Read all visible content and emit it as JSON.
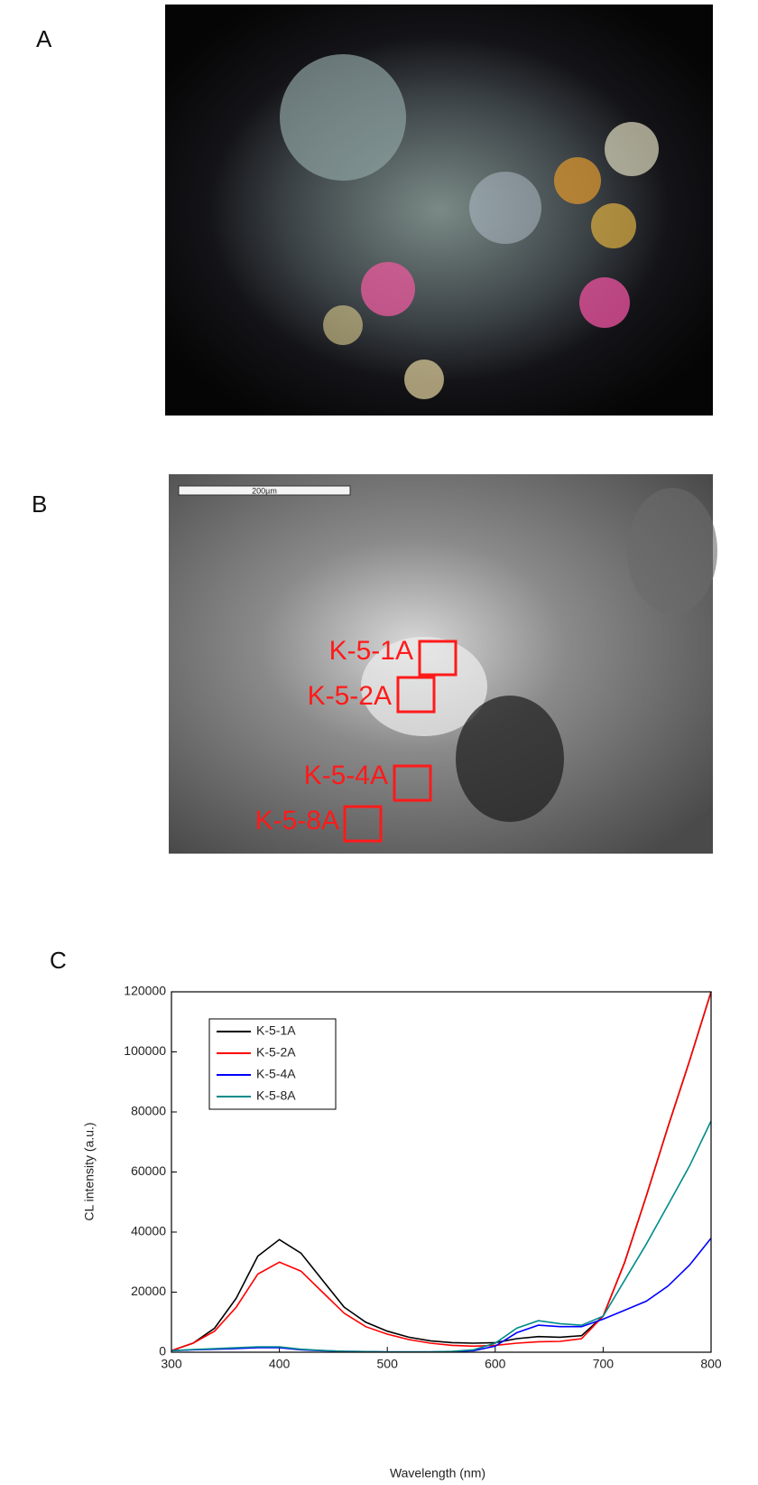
{
  "panels": {
    "a": {
      "label": "A"
    },
    "b": {
      "label": "B",
      "scale_bar": "200µm",
      "regions": [
        "K-5-1A",
        "K-5-2A",
        "K-5-4A",
        "K-5-8A"
      ]
    },
    "c": {
      "label": "C"
    }
  },
  "chart_data": {
    "type": "line",
    "xlabel": "Wavelength (nm)",
    "ylabel": "CL intensity (a.u.)",
    "x": [
      300,
      320,
      340,
      360,
      380,
      400,
      420,
      440,
      460,
      480,
      500,
      520,
      540,
      560,
      580,
      600,
      620,
      640,
      660,
      680,
      700,
      720,
      740,
      760,
      780,
      800
    ],
    "series": [
      {
        "name": "K-5-1A",
        "color": "#000000",
        "values": [
          500,
          3000,
          8000,
          18000,
          32000,
          37500,
          33000,
          24000,
          15000,
          10000,
          7000,
          5000,
          3800,
          3200,
          3000,
          3200,
          4500,
          5200,
          5000,
          5500,
          12000,
          30000,
          52000,
          75000,
          97000,
          120000
        ]
      },
      {
        "name": "K-5-2A",
        "color": "#ff0000",
        "values": [
          500,
          3000,
          7000,
          15000,
          26000,
          30000,
          27000,
          20000,
          13000,
          8500,
          6000,
          4200,
          3000,
          2300,
          2000,
          2300,
          3000,
          3500,
          3600,
          4500,
          12000,
          30000,
          52000,
          75000,
          97000,
          120000
        ]
      },
      {
        "name": "K-5-4A",
        "color": "#0000ff",
        "values": [
          500,
          800,
          1000,
          1200,
          1500,
          1500,
          800,
          500,
          300,
          200,
          100,
          100,
          100,
          200,
          500,
          2000,
          6500,
          9000,
          8500,
          8500,
          11000,
          14000,
          17000,
          22000,
          29000,
          38000
        ]
      },
      {
        "name": "K-5-8A",
        "color": "#008b8b",
        "values": [
          500,
          900,
          1200,
          1500,
          1800,
          1800,
          1000,
          600,
          300,
          200,
          100,
          100,
          100,
          300,
          800,
          3000,
          8000,
          10500,
          9500,
          9000,
          12000,
          24000,
          36000,
          49000,
          62000,
          77000
        ]
      }
    ],
    "xlim": [
      300,
      800
    ],
    "ylim": [
      0,
      120000
    ],
    "xticks": [
      300,
      400,
      500,
      600,
      700,
      800
    ],
    "yticks": [
      0,
      20000,
      40000,
      60000,
      80000,
      100000,
      120000
    ],
    "legend": "upper left"
  }
}
